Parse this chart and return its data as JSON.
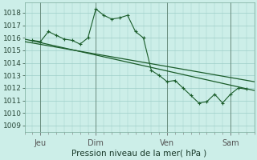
{
  "xlabel": "Pression niveau de la mer( hPa )",
  "bg_color": "#cceee8",
  "grid_color": "#9ecec8",
  "line_color": "#1a5c2a",
  "ylim": [
    1008.5,
    1018.8
  ],
  "yticks": [
    1009,
    1010,
    1011,
    1012,
    1013,
    1014,
    1015,
    1016,
    1017,
    1018
  ],
  "xlim": [
    0,
    14.5
  ],
  "x_tick_positions": [
    1.0,
    4.5,
    9.0,
    13.0
  ],
  "x_tick_labels": [
    "Jeu",
    "Dim",
    "Ven",
    "Sam"
  ],
  "vline_positions": [
    1.0,
    4.5,
    9.0,
    13.0
  ],
  "series1_x": [
    0.5,
    1.0,
    1.5,
    2.0,
    2.5,
    3.0,
    3.5,
    4.0,
    4.5,
    5.0,
    5.5,
    6.0,
    6.5,
    7.0,
    7.5,
    8.0,
    8.5,
    9.0,
    9.5,
    10.0,
    10.5,
    11.0,
    11.5,
    12.0,
    12.5,
    13.0,
    13.5,
    14.0
  ],
  "series1_y": [
    1015.8,
    1015.7,
    1016.5,
    1016.2,
    1015.9,
    1015.8,
    1015.5,
    1016.0,
    1018.3,
    1017.8,
    1017.5,
    1017.6,
    1017.8,
    1016.5,
    1016.0,
    1013.4,
    1013.0,
    1012.5,
    1012.6,
    1012.0,
    1011.4,
    1010.8,
    1010.9,
    1011.5,
    1010.8,
    1011.5,
    1012.0,
    1011.9
  ],
  "series2_x": [
    0.0,
    14.5
  ],
  "series2_y": [
    1015.9,
    1011.8
  ],
  "series3_x": [
    0.0,
    14.5
  ],
  "series3_y": [
    1015.7,
    1012.5
  ]
}
